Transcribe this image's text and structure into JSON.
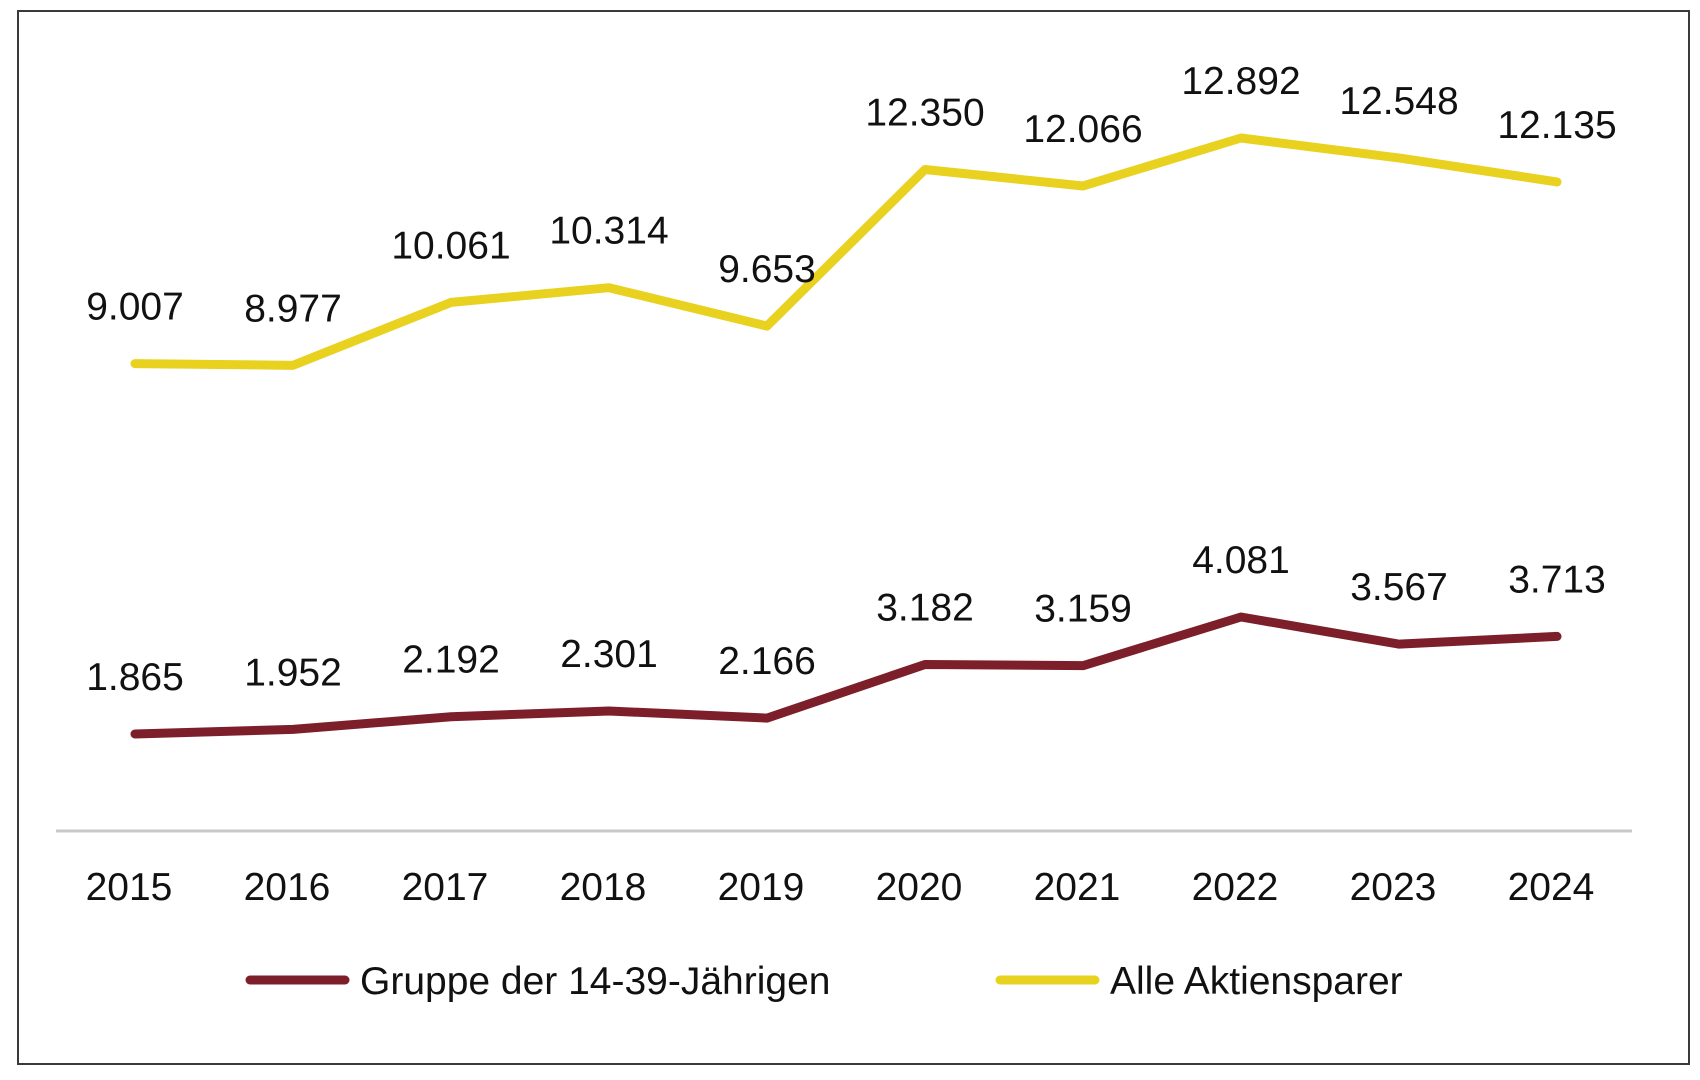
{
  "chart_data": {
    "type": "line",
    "title": "",
    "xlabel": "",
    "ylabel": "",
    "x": [
      "2015",
      "2016",
      "2017",
      "2018",
      "2019",
      "2020",
      "2021",
      "2022",
      "2023",
      "2024"
    ],
    "grid": false,
    "legend_position": "bottom",
    "series": [
      {
        "name": "Gruppe der 14-39-Jährigen",
        "color": "#7d1f2a",
        "values": [
          1865,
          1952,
          2192,
          2301,
          2166,
          3182,
          3159,
          4081,
          3567,
          3713
        ],
        "labels": [
          "1.865",
          "1.952",
          "2.192",
          "2.301",
          "2.166",
          "3.182",
          "3.159",
          "4.081",
          "3.567",
          "3.713"
        ]
      },
      {
        "name": "Alle Aktiensparer",
        "color": "#e8d21f",
        "values": [
          9007,
          8977,
          10061,
          10314,
          9653,
          12350,
          12066,
          12892,
          12548,
          12135
        ],
        "labels": [
          "9.007",
          "8.977",
          "10.061",
          "10.314",
          "9.653",
          "12.350",
          "12.066",
          "12.892",
          "12.548",
          "12.135"
        ]
      }
    ],
    "axis_color": "#c8c8c8"
  }
}
